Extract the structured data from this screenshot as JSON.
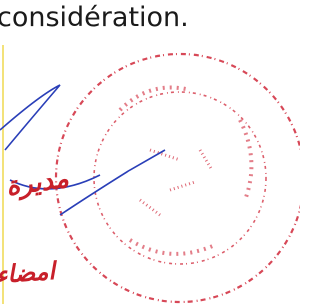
{
  "closing": "considération.",
  "handwriting": {
    "title": "مديرة",
    "signature_label": "امضاء"
  }
}
